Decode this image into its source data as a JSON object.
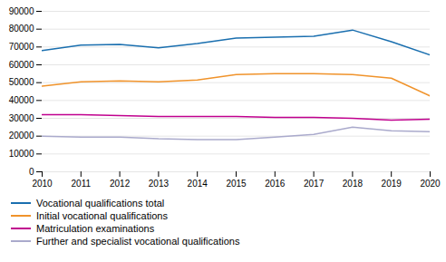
{
  "chart_data": {
    "type": "line",
    "x": [
      2010,
      2011,
      2012,
      2013,
      2014,
      2015,
      2016,
      2017,
      2018,
      2019,
      2020
    ],
    "series": [
      {
        "name": "Vocational qualifications total",
        "color": "#1a6faf",
        "values": [
          68000,
          71000,
          71500,
          69500,
          72000,
          75000,
          75500,
          76000,
          79500,
          73000,
          65500
        ]
      },
      {
        "name": "Initial vocational qualifications",
        "color": "#f0932b",
        "values": [
          48000,
          50500,
          51000,
          50500,
          51500,
          54500,
          55000,
          55000,
          54500,
          52500,
          42500
        ]
      },
      {
        "name": "Matriculation examinations",
        "color": "#c0008e",
        "values": [
          32000,
          32000,
          31500,
          31000,
          31000,
          31000,
          30500,
          30500,
          30000,
          29000,
          29500
        ]
      },
      {
        "name": "Further and specialist vocational qualifications",
        "color": "#aaaacc",
        "values": [
          20000,
          19500,
          19500,
          18500,
          18000,
          18000,
          19500,
          21000,
          25000,
          23000,
          22500
        ]
      }
    ],
    "xlim": [
      2010,
      2020
    ],
    "xticks": [
      2010,
      2011,
      2012,
      2013,
      2014,
      2015,
      2016,
      2017,
      2018,
      2019,
      2020
    ],
    "ylim": [
      0,
      90000
    ],
    "yticks": [
      0,
      10000,
      20000,
      30000,
      40000,
      50000,
      60000,
      70000,
      80000,
      90000
    ],
    "grid": true,
    "legend": "bottom"
  }
}
